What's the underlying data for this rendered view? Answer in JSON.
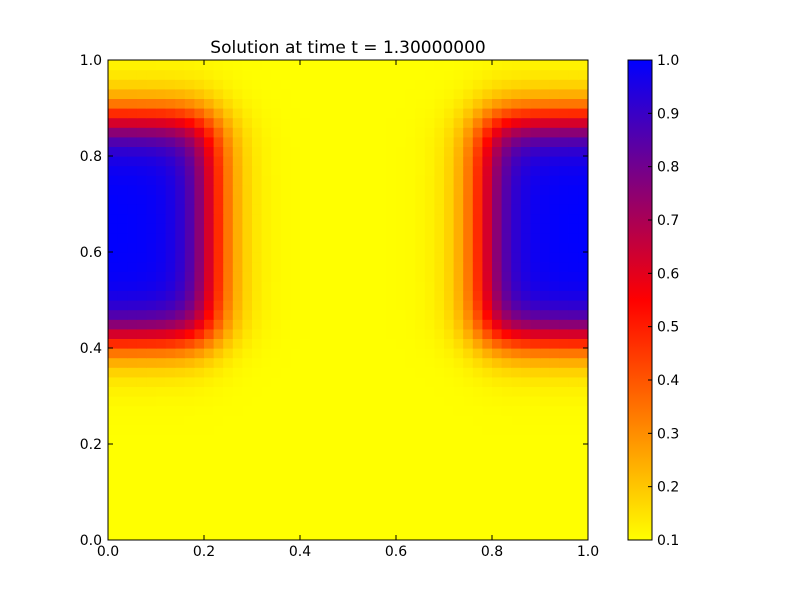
{
  "chart_data": {
    "type": "heatmap",
    "title": "Solution at time t =     1.30000000",
    "xlabel": "",
    "ylabel": "",
    "xlim": [
      0.0,
      1.0
    ],
    "ylim": [
      0.0,
      1.0
    ],
    "x_ticks": [
      "0.0",
      "0.2",
      "0.4",
      "0.6",
      "0.8",
      "1.0"
    ],
    "y_ticks": [
      "0.0",
      "0.2",
      "0.4",
      "0.6",
      "0.8",
      "1.0"
    ],
    "grid": false,
    "grid_resolution": [
      50,
      50
    ],
    "value_range": [
      0.1,
      1.0
    ],
    "description_of_field": {
      "background_value": 0.1,
      "regions": [
        {
          "name": "left-block",
          "x": [
            0.0,
            0.22
          ],
          "y": [
            0.42,
            0.88
          ],
          "peak": 1.0
        },
        {
          "name": "right-block",
          "x": [
            0.78,
            1.0
          ],
          "y": [
            0.42,
            0.88
          ],
          "peak": 1.0
        }
      ]
    },
    "colorbar": {
      "ticks": [
        "0.1",
        "0.2",
        "0.3",
        "0.4",
        "0.5",
        "0.6",
        "0.7",
        "0.8",
        "0.9",
        "1.0"
      ],
      "range": [
        0.1,
        1.0
      ],
      "colors": [
        {
          "stop": 0.0,
          "color": "#ffff00"
        },
        {
          "stop": 0.5,
          "color": "#ff0000"
        },
        {
          "stop": 1.0,
          "color": "#0000ff"
        }
      ]
    }
  }
}
